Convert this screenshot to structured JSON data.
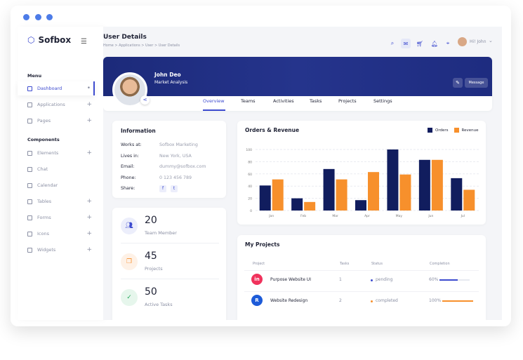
{
  "app": {
    "name": "Sofbox"
  },
  "sidebar": {
    "menu_label": "Menu",
    "components_label": "Components",
    "items": [
      {
        "label": "Dashboard",
        "icon": "home-icon",
        "active": true,
        "trail": "•"
      },
      {
        "label": "Applications",
        "icon": "clipboard-icon",
        "trail": "+"
      },
      {
        "label": "Pages",
        "icon": "pages-icon",
        "trail": "+"
      }
    ],
    "component_items": [
      {
        "label": "Elements",
        "icon": "grid-icon",
        "trail": "+"
      },
      {
        "label": "Chat",
        "icon": "chat-icon",
        "trail": ""
      },
      {
        "label": "Calendar",
        "icon": "calendar-icon",
        "trail": ""
      },
      {
        "label": "Tables",
        "icon": "table-icon",
        "trail": "+"
      },
      {
        "label": "Forms",
        "icon": "form-icon",
        "trail": "+"
      },
      {
        "label": "Icons",
        "icon": "icons-icon",
        "trail": "+"
      },
      {
        "label": "Widgets",
        "icon": "widget-icon",
        "trail": "+"
      }
    ]
  },
  "header": {
    "title": "User Details",
    "breadcrumb": "Home > Applications > User > User Details",
    "user_greeting": "Hi! John"
  },
  "profile": {
    "name": "John Deo",
    "role": "Market Analysis",
    "message_label": "Message",
    "tabs": [
      "Overview",
      "Teams",
      "Activities",
      "Tasks",
      "Projects",
      "Settings"
    ],
    "active_tab": "Overview"
  },
  "information": {
    "title": "Information",
    "rows": [
      {
        "label": "Works at:",
        "value": "Sofbox Marketing"
      },
      {
        "label": "Lives in:",
        "value": "New York, USA"
      },
      {
        "label": "Email:",
        "value": "dummy@sofbox.com"
      },
      {
        "label": "Phone:",
        "value": "0 123 456 789"
      },
      {
        "label": "Share:",
        "value": ""
      }
    ]
  },
  "stats": [
    {
      "value": "20",
      "label": "Team Member",
      "color": "#3d4bcf",
      "bg": "#eceefb",
      "icon": "users-icon"
    },
    {
      "value": "45",
      "label": "Projects",
      "color": "#f7902c",
      "bg": "#fef1e6",
      "icon": "copy-icon"
    },
    {
      "value": "50",
      "label": "Active Tasks",
      "color": "#27a85c",
      "bg": "#e6f6ec",
      "icon": "check-icon"
    }
  ],
  "chart_data": {
    "type": "bar",
    "title": "Orders & Revenue",
    "categories": [
      "Jan",
      "Feb",
      "Mar",
      "Apr",
      "May",
      "Jun",
      "Jul"
    ],
    "series": [
      {
        "name": "Orders",
        "color": "#111d5e",
        "values": [
          41,
          20,
          68,
          17,
          100,
          83,
          53
        ]
      },
      {
        "name": "Revenue",
        "color": "#f7902c",
        "values": [
          51,
          14,
          51,
          63,
          59,
          83,
          34
        ]
      }
    ],
    "ylim": [
      0,
      100
    ],
    "yticks": [
      0,
      20,
      40,
      60,
      80,
      100
    ],
    "grid": true,
    "legend": "top-right"
  },
  "projects": {
    "title": "My Projects",
    "columns": [
      "Project",
      "Tasks",
      "Status",
      "Completion"
    ],
    "rows": [
      {
        "name": "Purpose Website UI",
        "tasks": "1",
        "status": "pending",
        "status_color": "#3d4bcf",
        "completion": "60%",
        "progress": 60,
        "bar_color": "#3d4bcf",
        "logo_color": "#f0325c",
        "logo": "in"
      },
      {
        "name": "Website Redesign",
        "tasks": "2",
        "status": "completed",
        "status_color": "#f7902c",
        "completion": "100%",
        "progress": 100,
        "bar_color": "#f7902c",
        "logo_color": "#1d5bd8",
        "logo": "R"
      }
    ]
  }
}
